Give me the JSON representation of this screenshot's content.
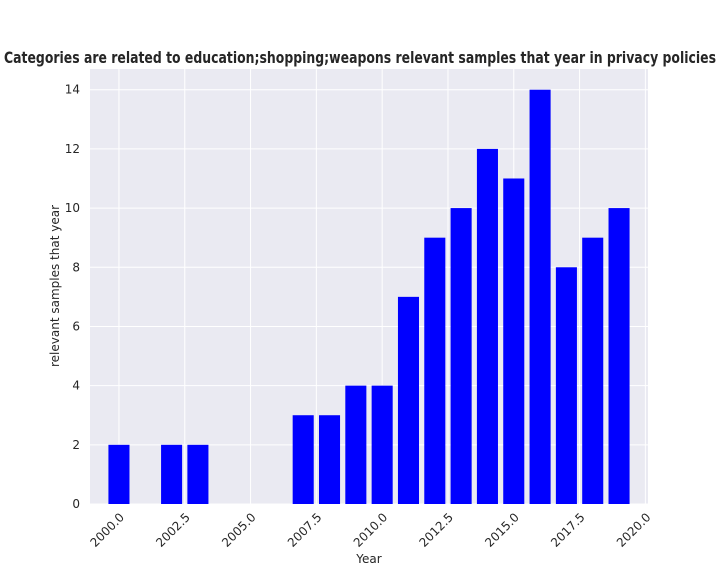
{
  "chart_data": {
    "type": "bar",
    "title": "Categories are related to education;shopping;weapons relevant samples that year in privacy policies",
    "xlabel": "Year",
    "ylabel": "relevant samples that year",
    "x": [
      2000,
      2002,
      2003,
      2007,
      2008,
      2009,
      2010,
      2011,
      2012,
      2013,
      2014,
      2015,
      2016,
      2017,
      2018,
      2019
    ],
    "values": [
      2,
      2,
      2,
      3,
      3,
      4,
      4,
      7,
      9,
      10,
      12,
      11,
      14,
      8,
      9,
      10
    ],
    "xlim": [
      1998.9,
      2020.1
    ],
    "ylim": [
      0,
      14.7
    ],
    "xticks": [
      2000.0,
      2002.5,
      2005.0,
      2007.5,
      2010.0,
      2012.5,
      2015.0,
      2017.5,
      2020.0
    ],
    "xtick_labels": [
      "2000.0",
      "2002.5",
      "2005.0",
      "2007.5",
      "2010.0",
      "2012.5",
      "2015.0",
      "2017.5",
      "2020.0"
    ],
    "yticks": [
      0,
      2,
      4,
      6,
      8,
      10,
      12,
      14
    ],
    "ytick_labels": [
      "0",
      "2",
      "4",
      "6",
      "8",
      "10",
      "12",
      "14"
    ],
    "bar_color": "#0000ff",
    "background_color": "#eaeaf2",
    "grid_color": "#ffffff",
    "grid": true
  }
}
